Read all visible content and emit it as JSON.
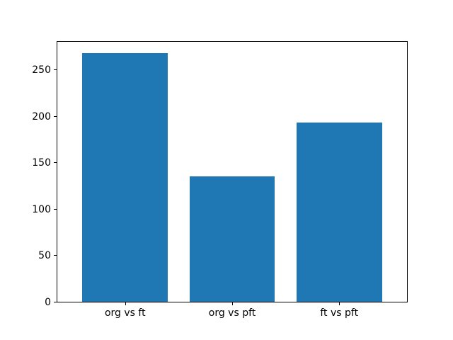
{
  "figure": {
    "background": "#ffffff"
  },
  "chart_data": {
    "type": "bar",
    "categories": [
      "org vs ft",
      "org vs pft",
      "ft vs pft"
    ],
    "values": [
      268,
      135,
      193
    ],
    "title": "",
    "xlabel": "",
    "ylabel": "",
    "ylim": [
      0,
      281.4
    ],
    "yticks": [
      0,
      50,
      100,
      150,
      200,
      250
    ],
    "bar_color": "#1f77b4",
    "bar_width_fraction": 0.8,
    "grid": false,
    "legend": false
  }
}
